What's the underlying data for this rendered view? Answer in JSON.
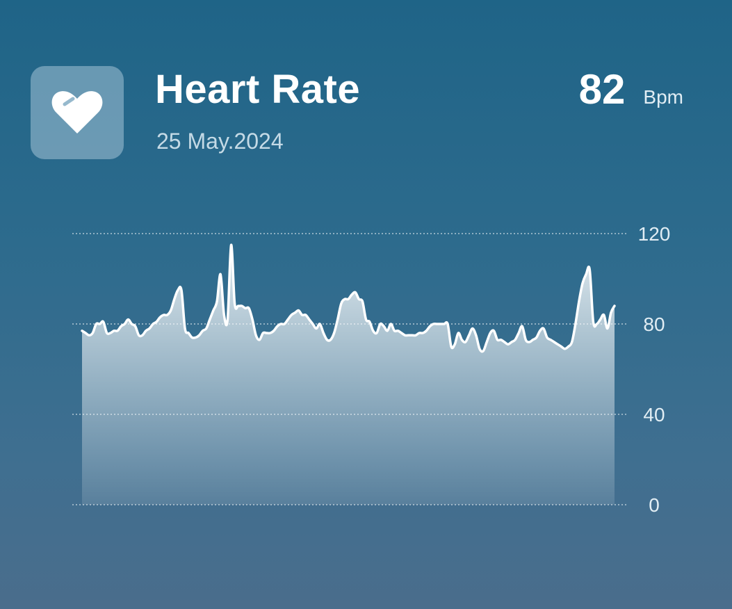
{
  "header": {
    "title": "Heart Rate",
    "date": "25 May.2024",
    "current_value": "82",
    "unit": "Bpm"
  },
  "icons": {
    "app_icon": "heart-icon"
  },
  "colors": {
    "background_top": "#1f6487",
    "background_bottom": "#4a6d8c",
    "line": "#ffffff"
  },
  "chart_data": {
    "type": "area",
    "title": "",
    "xlabel": "",
    "ylabel": "",
    "ylim": [
      0,
      120
    ],
    "y_ticks": [
      0,
      40,
      80,
      120
    ],
    "grid": "horizontal dotted",
    "y_axis_side": "right",
    "series": [
      {
        "values": [
          77,
          76,
          75,
          76,
          80,
          80,
          81,
          76,
          76,
          77,
          77,
          79,
          80,
          82,
          80,
          79,
          75,
          75,
          77,
          78,
          80,
          81,
          83,
          84,
          84,
          86,
          91,
          95,
          95,
          78,
          76,
          74,
          74,
          75,
          77,
          78,
          82,
          86,
          90,
          102,
          84,
          82,
          115,
          89,
          88,
          88,
          87,
          87,
          82,
          75,
          73,
          76,
          76,
          76,
          77,
          79,
          80,
          80,
          82,
          84,
          85,
          86,
          84,
          84,
          82,
          80,
          78,
          80,
          76,
          73,
          73,
          76,
          82,
          89,
          91,
          91,
          93,
          94,
          91,
          90,
          82,
          81,
          77,
          76,
          80,
          79,
          77,
          80,
          77,
          77,
          76,
          75,
          75,
          75,
          75,
          76,
          76,
          77,
          79,
          80,
          80,
          80,
          80,
          80,
          70,
          71,
          76,
          73,
          72,
          75,
          78,
          75,
          69,
          68,
          72,
          76,
          77,
          73,
          73,
          72,
          71,
          72,
          73,
          76,
          79,
          73,
          72,
          73,
          74,
          77,
          78,
          74,
          73,
          72,
          71,
          70,
          69,
          70,
          72,
          80,
          90,
          98,
          102,
          104,
          81,
          80,
          82,
          84,
          78,
          85,
          88
        ]
      }
    ]
  }
}
